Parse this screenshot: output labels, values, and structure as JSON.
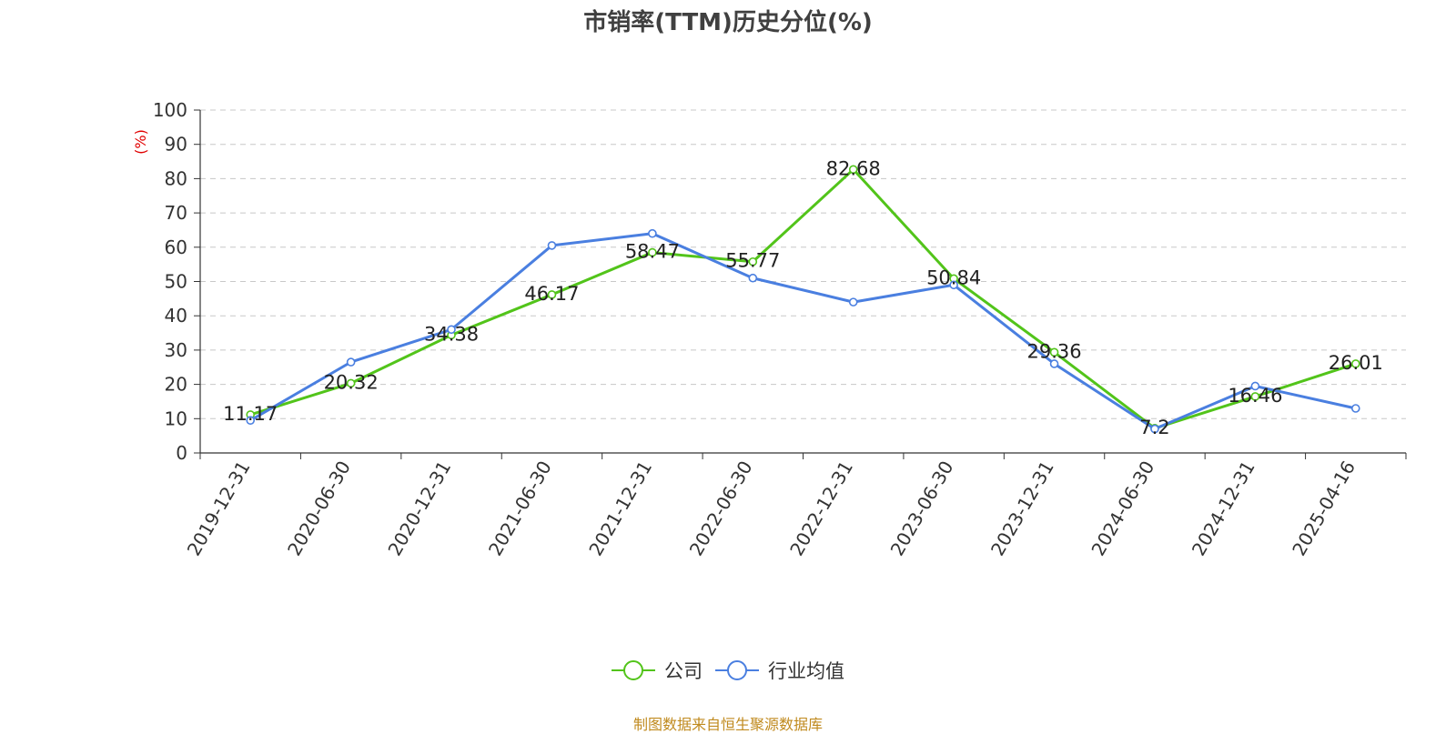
{
  "chart_data": {
    "type": "line",
    "title": "市销率(TTM)历史分位(%)",
    "ylabel": "(%)",
    "xlabel": "",
    "ylim": [
      0,
      100
    ],
    "yticks": [
      "0",
      "10",
      "20",
      "30",
      "40",
      "50",
      "60",
      "70",
      "80",
      "90",
      "100"
    ],
    "categories": [
      "2019-12-31",
      "2020-06-30",
      "2020-12-31",
      "2021-06-30",
      "2021-12-31",
      "2022-06-30",
      "2022-12-31",
      "2023-06-30",
      "2023-12-31",
      "2024-06-30",
      "2024-12-31",
      "2025-04-16"
    ],
    "series": [
      {
        "name": "公司",
        "color": "#52c41a",
        "values": [
          11.17,
          20.32,
          34.38,
          46.17,
          58.47,
          55.77,
          82.68,
          50.84,
          29.36,
          7.2,
          16.46,
          26.01
        ],
        "labels": [
          "11.17",
          "20.32",
          "34.38",
          "46.17",
          "58.47",
          "55.77",
          "82.68",
          "50.84",
          "29.36",
          "7.2",
          "16.46",
          "26.01"
        ]
      },
      {
        "name": "行业均值",
        "color": "#4a7fe0",
        "values": [
          9.5,
          26.5,
          36,
          60.5,
          64,
          51,
          44,
          49,
          26,
          7,
          19.5,
          13
        ]
      }
    ],
    "grid": true,
    "legend_position": "bottom-center"
  },
  "source_note": "制图数据来自恒生聚源数据库"
}
